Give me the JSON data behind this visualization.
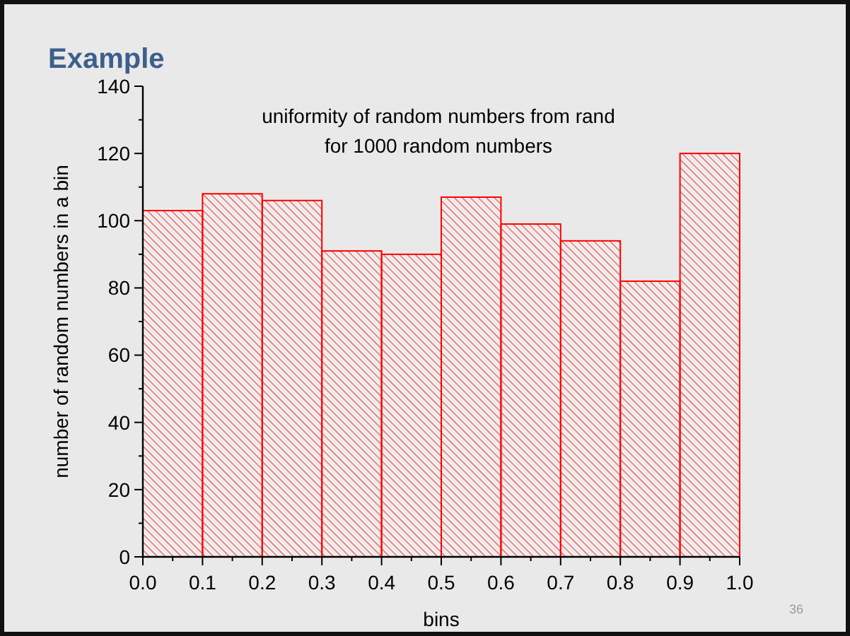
{
  "chart_data": {
    "type": "histogram",
    "title": "Example",
    "xlabel": "bins",
    "ylabel": "number of random numbers in a bin",
    "annotations": [
      "uniformity of random numbers from rand\nfor 1000 random numbers",
      "36"
    ],
    "bins": [
      0,
      0.1,
      0.2,
      0.3,
      0.4,
      0.5,
      0.6,
      0.7,
      0.8,
      0.9,
      1.0
    ],
    "values": [
      103,
      108,
      106,
      91,
      90,
      107,
      99,
      94,
      82,
      120
    ],
    "color": "#ff0000",
    "xlim": [
      0,
      1.0
    ],
    "xticks": [
      {
        "value": 0,
        "label": "0.0"
      },
      {
        "value": 0.05,
        "label": null
      },
      {
        "value": 0.1,
        "label": "0.1"
      },
      {
        "value": 0.15,
        "label": null
      },
      {
        "value": 0.2,
        "label": "0.2"
      },
      {
        "value": 0.25,
        "label": null
      },
      {
        "value": 0.3,
        "label": "0.3"
      },
      {
        "value": 0.35,
        "label": null
      },
      {
        "value": 0.4,
        "label": "0.4"
      },
      {
        "value": 0.45,
        "label": null
      },
      {
        "value": 0.5,
        "label": "0.5"
      },
      {
        "value": 0.55,
        "label": null
      },
      {
        "value": 0.6,
        "label": "0.6"
      },
      {
        "value": 0.65,
        "label": null
      },
      {
        "value": 0.7,
        "label": "0.7"
      },
      {
        "value": 0.75,
        "label": null
      },
      {
        "value": 0.8,
        "label": "0.8"
      },
      {
        "value": 0.85,
        "label": null
      },
      {
        "value": 0.9,
        "label": "0.9"
      },
      {
        "value": 0.95,
        "label": null
      },
      {
        "value": 1.0,
        "label": "1.0"
      }
    ],
    "ylim": [
      0,
      140
    ],
    "yticks": [
      0,
      {
        "value": 10,
        "label": null
      },
      20,
      {
        "value": 30,
        "label": null
      },
      40,
      {
        "value": 50,
        "label": null
      },
      60,
      {
        "value": 70,
        "label": null
      },
      80,
      {
        "value": 90,
        "label": null
      },
      100,
      {
        "value": 110,
        "label": null
      },
      120,
      {
        "value": 130,
        "label": null
      },
      140
    ],
    "grid": false
  }
}
